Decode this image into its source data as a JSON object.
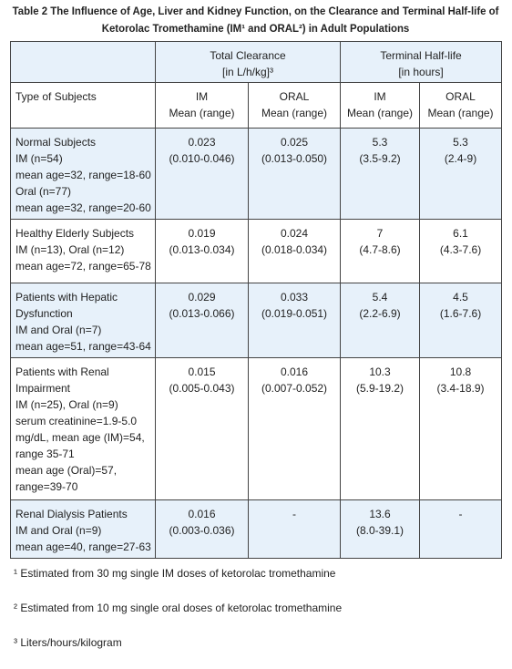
{
  "title_lines": [
    "Table 2 The Influence of Age, Liver and Kidney Function, on the Clearance and Terminal Half-life of",
    "Ketorolac Tromethamine (IM¹ and ORAL²) in Adult Populations"
  ],
  "table": {
    "group_headers": [
      [
        "Total Clearance",
        "[in L/h/kg]³"
      ],
      [
        "Terminal Half-life",
        "[in hours]"
      ]
    ],
    "column_headers": [
      [
        "Type of Subjects"
      ],
      [
        "IM",
        "Mean (range)"
      ],
      [
        "ORAL",
        "Mean (range)"
      ],
      [
        "IM",
        "Mean (range)"
      ],
      [
        "ORAL",
        "Mean (range)"
      ]
    ],
    "rows": [
      [
        [
          "Normal Subjects",
          "IM (n=54)",
          "mean age=32, range=18-60",
          "Oral (n=77)",
          "mean age=32, range=20-60"
        ],
        [
          "0.023",
          "(0.010-0.046)"
        ],
        [
          "0.025",
          "(0.013-0.050)"
        ],
        [
          "5.3",
          "(3.5-9.2)"
        ],
        [
          "5.3",
          "(2.4-9)"
        ]
      ],
      [
        [
          "Healthy Elderly Subjects",
          "IM (n=13), Oral (n=12)",
          "mean age=72, range=65-78"
        ],
        [
          "0.019",
          "(0.013-0.034)"
        ],
        [
          "0.024",
          "(0.018-0.034)"
        ],
        [
          "7",
          "(4.7-8.6)"
        ],
        [
          "6.1",
          "(4.3-7.6)"
        ]
      ],
      [
        [
          "Patients with Hepatic",
          "Dysfunction",
          "IM and Oral (n=7)",
          "mean age=51, range=43-64"
        ],
        [
          "0.029",
          "(0.013-0.066)"
        ],
        [
          "0.033",
          "(0.019-0.051)"
        ],
        [
          "5.4",
          "(2.2-6.9)"
        ],
        [
          "4.5",
          "(1.6-7.6)"
        ]
      ],
      [
        [
          "Patients with Renal",
          "Impairment",
          "IM (n=25), Oral (n=9)",
          "serum creatinine=1.9-5.0",
          "mg/dL, mean age (IM)=54,",
          "range 35-71",
          "mean age (Oral)=57,",
          "range=39-70"
        ],
        [
          "0.015",
          "(0.005-0.043)"
        ],
        [
          "0.016",
          "(0.007-0.052)"
        ],
        [
          "10.3",
          "(5.9-19.2)"
        ],
        [
          "10.8",
          "(3.4-18.9)"
        ]
      ],
      [
        [
          "Renal Dialysis Patients",
          "IM and Oral (n=9)",
          "mean age=40, range=27-63"
        ],
        [
          "0.016",
          "(0.003-0.036)"
        ],
        [
          "-"
        ],
        [
          "13.6",
          "(8.0-39.1)"
        ],
        [
          "-"
        ]
      ]
    ]
  },
  "footnotes": [
    "¹ Estimated from 30 mg single IM doses of ketorolac tromethamine",
    "² Estimated from 10 mg single oral doses of ketorolac tromethamine",
    "³ Liters/hours/kilogram"
  ]
}
